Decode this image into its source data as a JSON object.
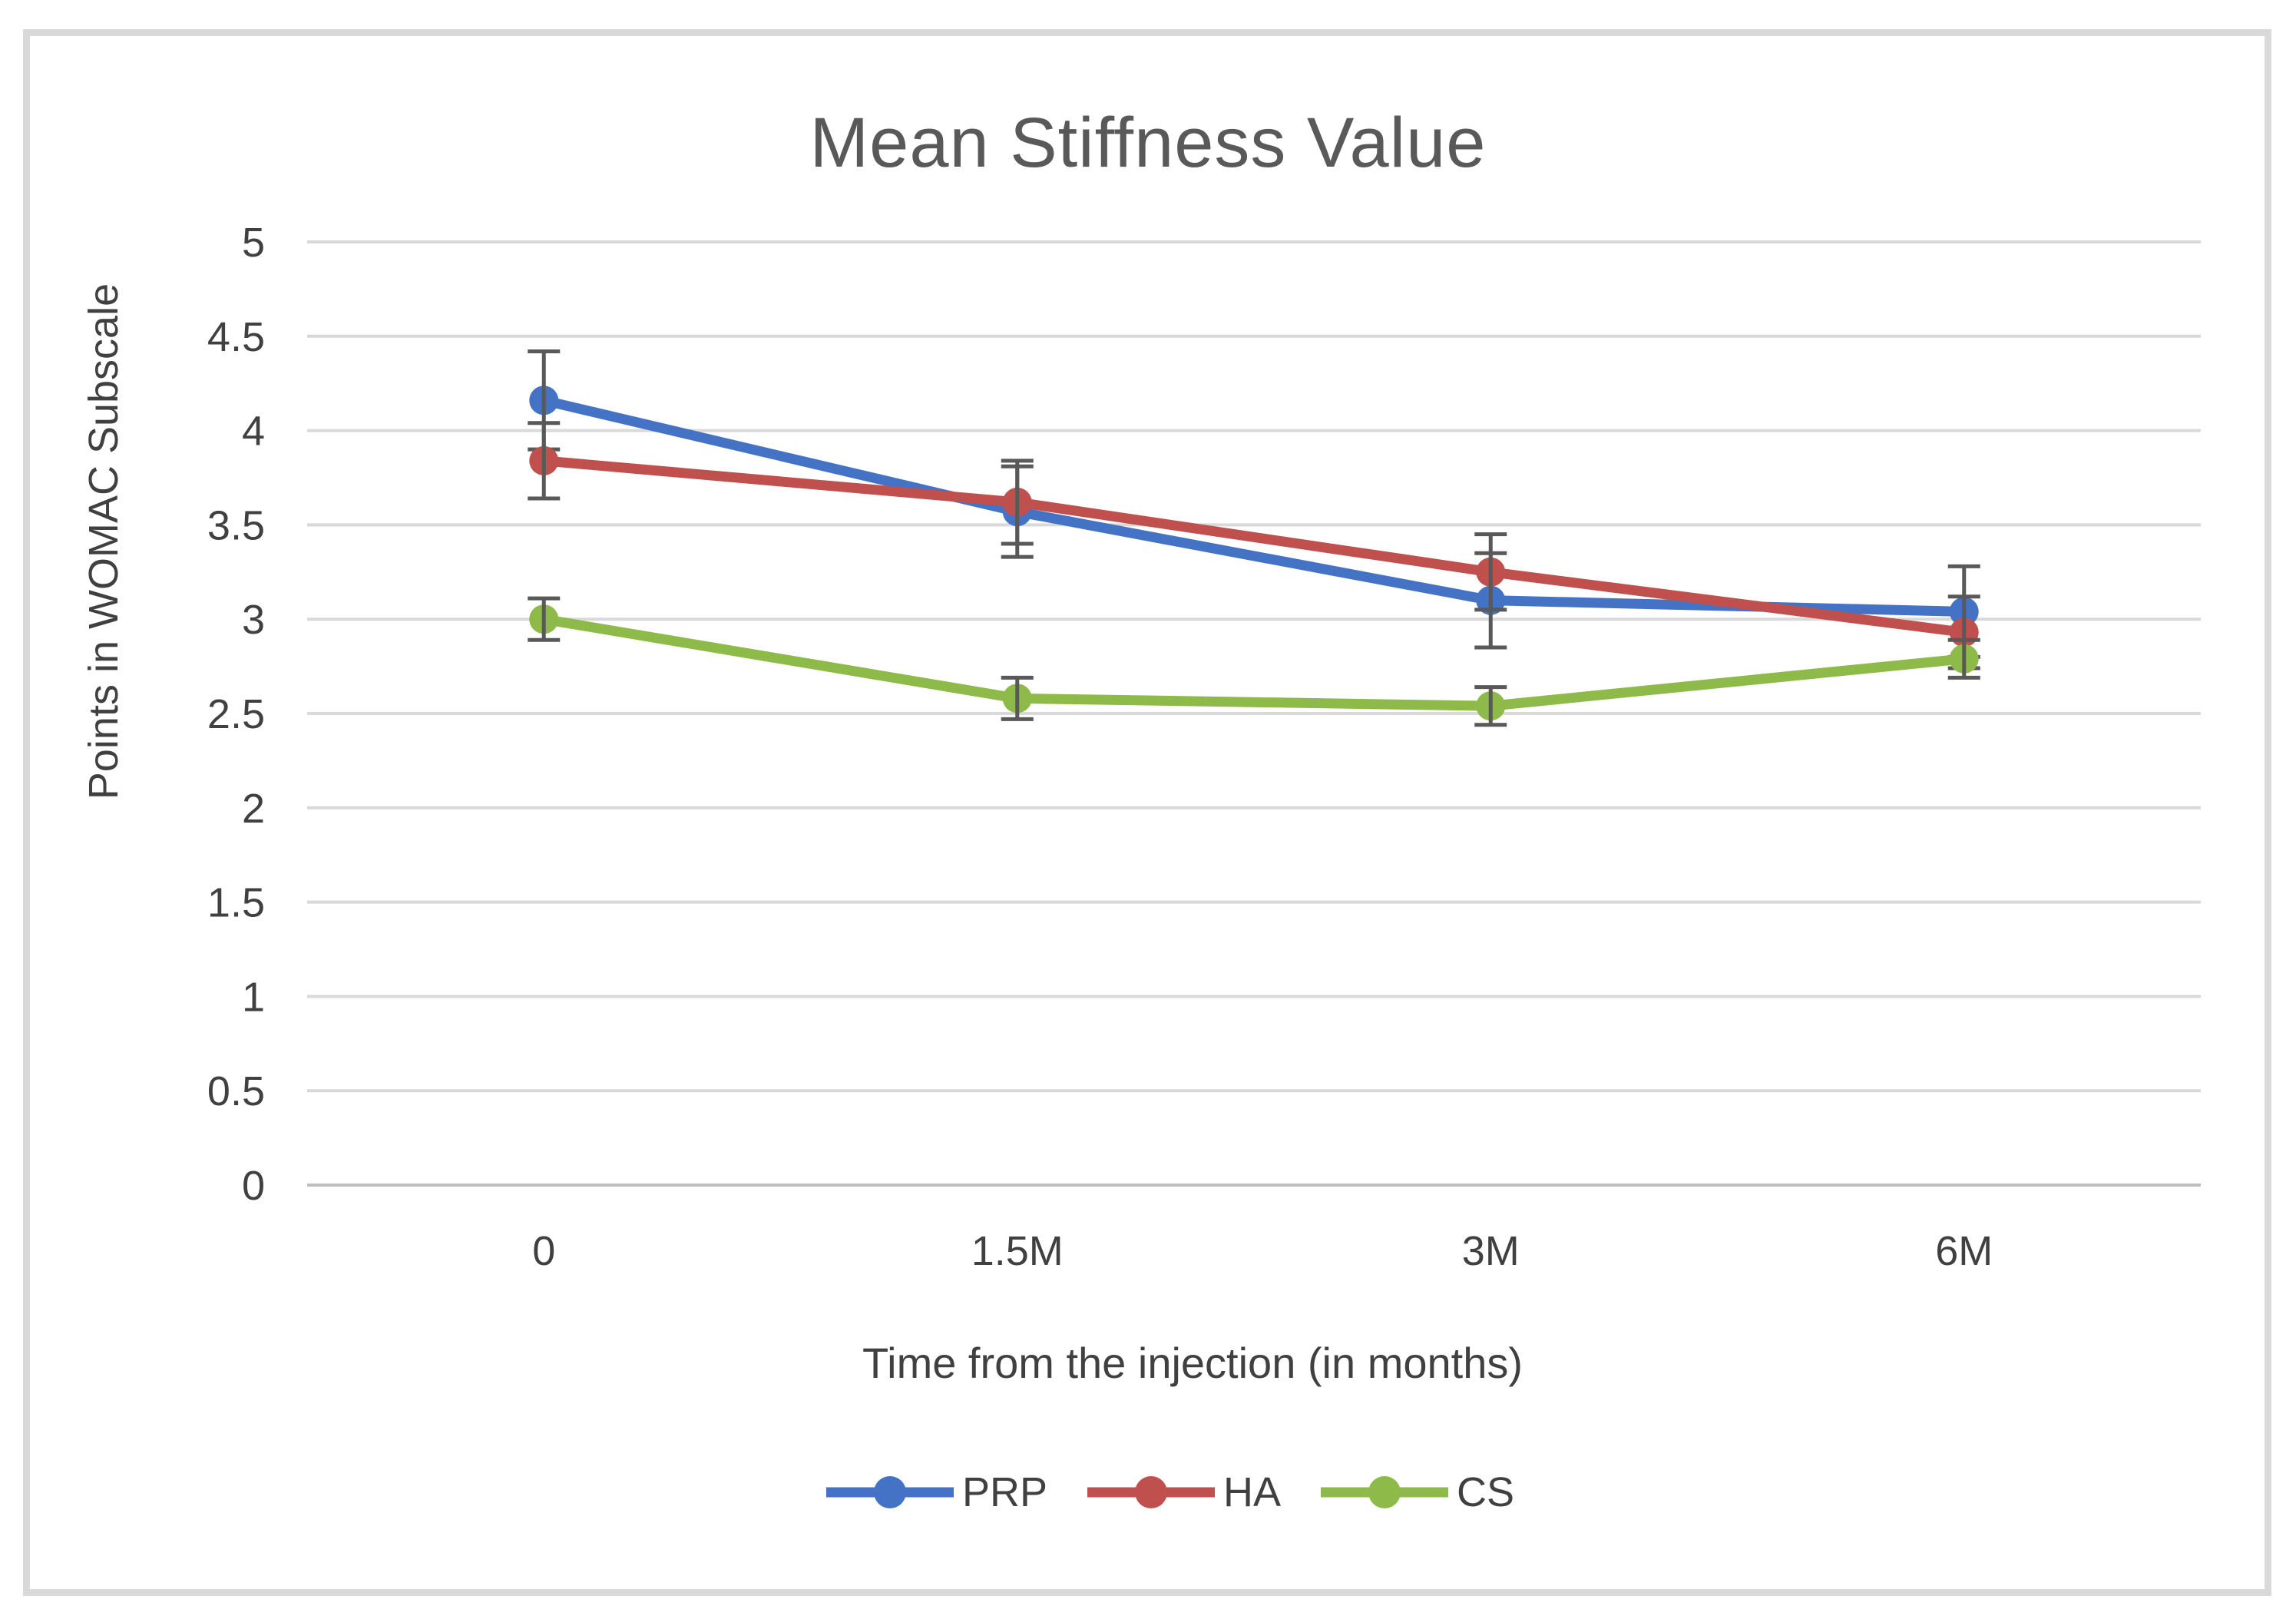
{
  "figure": {
    "background": "#ffffff",
    "frame_color": "#d9d9d9"
  },
  "chart_data": {
    "type": "line",
    "title": "Mean Stiffness Value",
    "xlabel": "Time from the injection (in months)",
    "ylabel": "Points in WOMAC Subscale",
    "categories": [
      "0",
      "1.5M",
      "3M",
      "6M"
    ],
    "series": [
      {
        "name": "PRP",
        "color": "#4472c4",
        "values": [
          4.16,
          3.57,
          3.1,
          3.04
        ],
        "errors": [
          0.26,
          0.24,
          0.25,
          0.24
        ]
      },
      {
        "name": "HA",
        "color": "#c0504d",
        "values": [
          3.84,
          3.62,
          3.25,
          2.93
        ],
        "errors": [
          0.2,
          0.22,
          0.2,
          0.19
        ]
      },
      {
        "name": "CS",
        "color": "#8dba49",
        "values": [
          3.0,
          2.58,
          2.54,
          2.79
        ],
        "errors": [
          0.11,
          0.11,
          0.1,
          0.1
        ]
      }
    ],
    "ylim": [
      0,
      5
    ],
    "ytick_step": 0.5,
    "yticks": [
      5,
      4.5,
      4,
      3.5,
      3,
      2.5,
      2,
      1.5,
      1,
      0.5,
      0
    ],
    "grid": true,
    "legend_position": "bottom",
    "gridline_color": "#d9d9d9",
    "axis_line_color": "#bfbfbf",
    "error_bar_color": "#595959",
    "tick_text_color": "#404040",
    "title_color": "#595959"
  }
}
